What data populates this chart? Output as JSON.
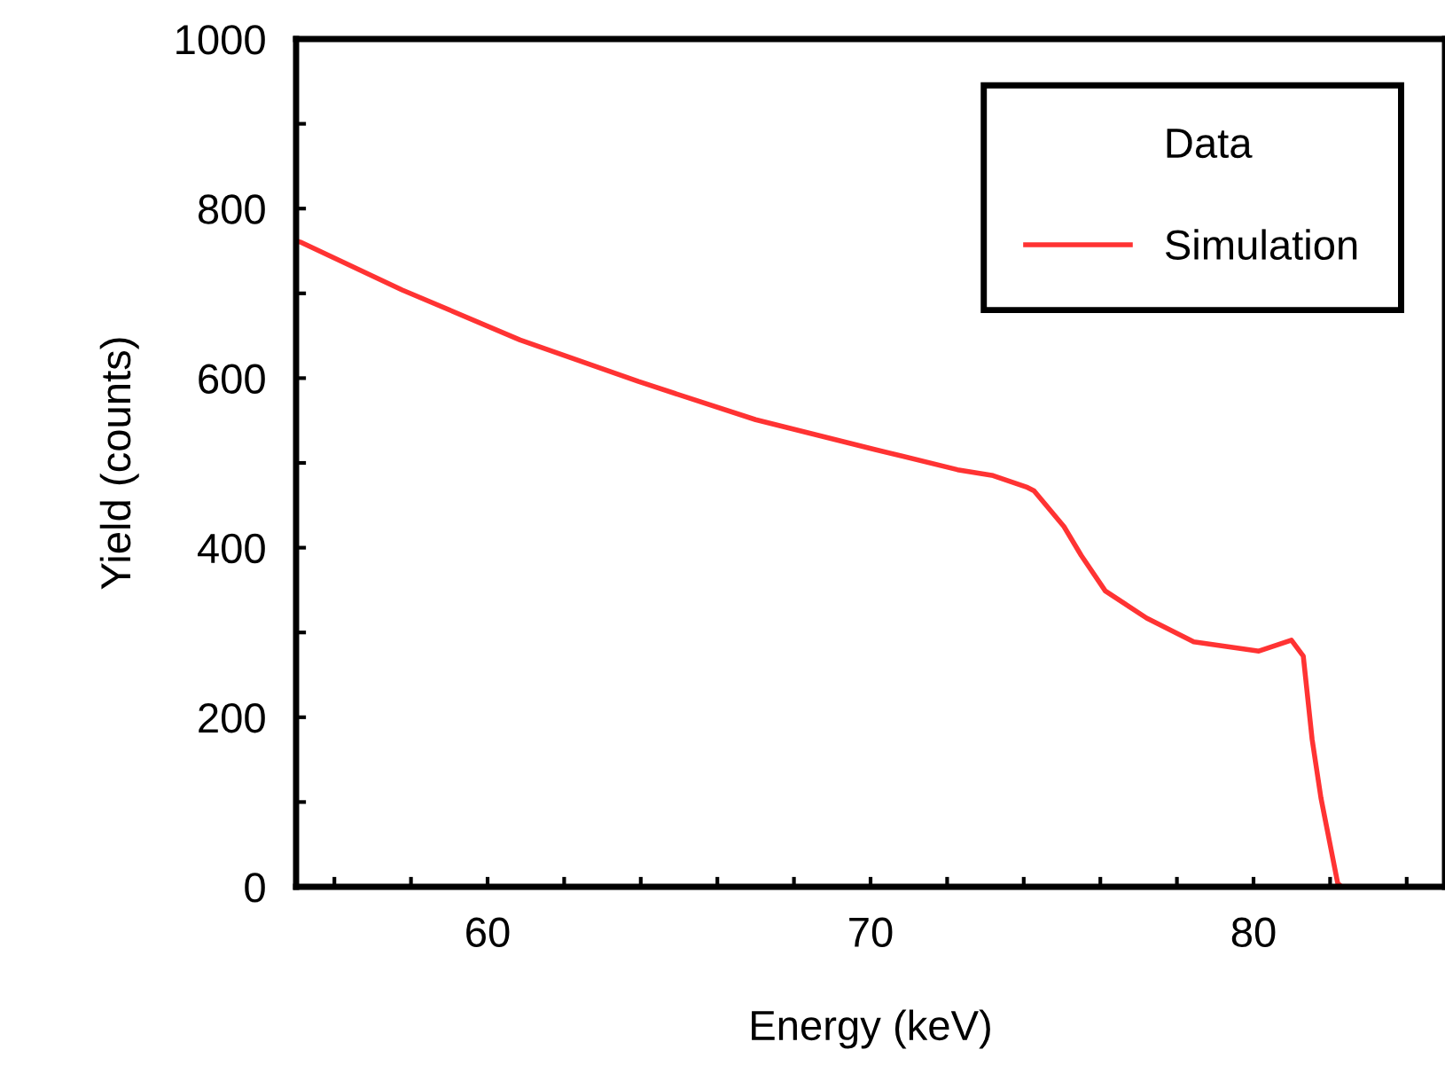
{
  "chart_data": {
    "type": "line",
    "xlabel": "Energy (keV)",
    "ylabel": "Yield (counts)",
    "xlim": [
      55,
      85
    ],
    "ylim": [
      0,
      1000
    ],
    "xticks": [
      {
        "value": 56,
        "label": null
      },
      {
        "value": 58,
        "label": null
      },
      60,
      {
        "value": 62,
        "label": null
      },
      {
        "value": 64,
        "label": null
      },
      {
        "value": 66,
        "label": null
      },
      {
        "value": 68,
        "label": null
      },
      70,
      {
        "value": 72,
        "label": null
      },
      {
        "value": 74,
        "label": null
      },
      {
        "value": 76,
        "label": null
      },
      {
        "value": 78,
        "label": null
      },
      80,
      {
        "value": 82,
        "label": null
      },
      {
        "value": 84,
        "label": null
      }
    ],
    "yticks": [
      0,
      {
        "value": 100,
        "label": null
      },
      200,
      {
        "value": 300,
        "label": null
      },
      400,
      {
        "value": 500,
        "label": null
      },
      600,
      {
        "value": 700,
        "label": null
      },
      800,
      {
        "value": 900,
        "label": null
      },
      1000
    ],
    "grid": false,
    "legend": "top right",
    "line_style": "solid",
    "series": [
      {
        "name": "Data",
        "type": "scatter",
        "marker": "none"
      },
      {
        "name": "Simulation",
        "color": "#ff3333",
        "x": [
          55.0,
          55.14,
          57.77,
          60.85,
          63.94,
          67.0,
          70.1,
          72.27,
          73.2,
          74.1,
          74.27,
          75.05,
          75.5,
          76.13,
          77.21,
          78.44,
          80.14,
          80.99,
          81.3,
          81.53,
          81.76,
          82.2,
          82.3
        ],
        "values": [
          762,
          760,
          704,
          645,
          596,
          551,
          516,
          492,
          485,
          471,
          467,
          425,
          391,
          349,
          317,
          289,
          278,
          291,
          272,
          174,
          105,
          4,
          0
        ]
      }
    ]
  }
}
